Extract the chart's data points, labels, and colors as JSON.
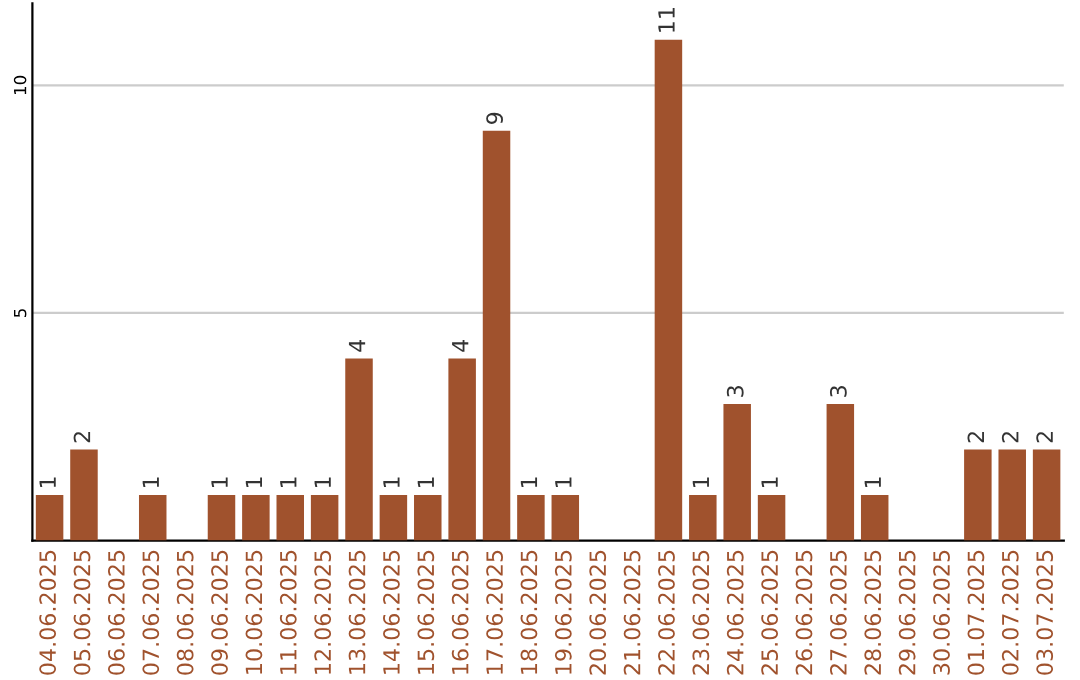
{
  "chart_data": {
    "type": "bar",
    "categories": [
      "04.06.2025",
      "05.06.2025",
      "06.06.2025",
      "07.06.2025",
      "08.06.2025",
      "09.06.2025",
      "10.06.2025",
      "11.06.2025",
      "12.06.2025",
      "13.06.2025",
      "14.06.2025",
      "15.06.2025",
      "16.06.2025",
      "17.06.2025",
      "18.06.2025",
      "19.06.2025",
      "20.06.2025",
      "21.06.2025",
      "22.06.2025",
      "23.06.2025",
      "24.06.2025",
      "25.06.2025",
      "26.06.2025",
      "27.06.2025",
      "28.06.2025",
      "29.06.2025",
      "30.06.2025",
      "01.07.2025",
      "02.07.2025",
      "03.07.2025"
    ],
    "values": [
      1,
      2,
      0,
      1,
      0,
      1,
      1,
      1,
      1,
      4,
      1,
      1,
      4,
      9,
      1,
      1,
      0,
      0,
      11,
      1,
      3,
      1,
      0,
      3,
      1,
      0,
      0,
      2,
      2,
      2
    ],
    "value_labels": [
      "1",
      "2",
      null,
      "1",
      null,
      "1",
      "1",
      "1",
      "1",
      "4",
      "1",
      "1",
      "4",
      "9",
      "1",
      "1",
      null,
      null,
      "11",
      "1",
      "3",
      "1",
      null,
      "3",
      "1",
      null,
      null,
      "2",
      "2",
      "2"
    ],
    "color": "#a0522d",
    "ylim": [
      0,
      11.8
    ],
    "yticks": [
      5,
      10
    ],
    "grid": "y"
  }
}
